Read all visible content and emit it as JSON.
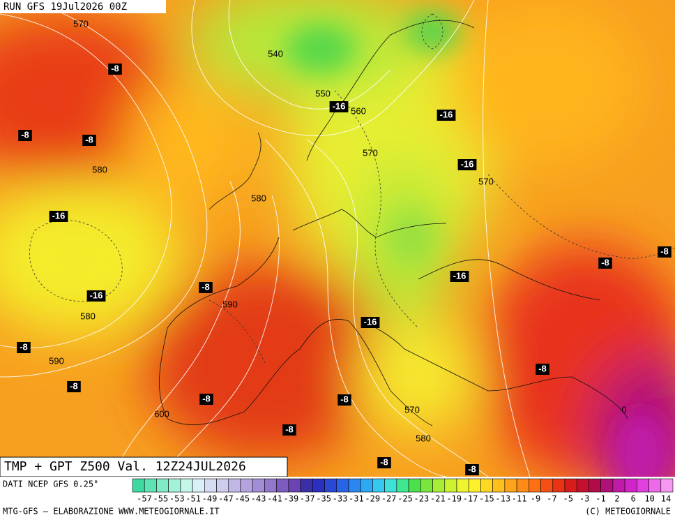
{
  "header": {
    "run": "RUN GFS 19Jul2026 00Z"
  },
  "title": "TMP + GPT Z500 Val. 12Z24JUL2026",
  "source": "DATI NCEP GFS 0.25°",
  "footer_left": "MTG-GFS – ELABORAZIONE WWW.METEOGIORNALE.IT",
  "footer_right": "(C) METEOGIORNALE",
  "height_labels": [
    "570",
    "540",
    "550",
    "560",
    "570",
    "580",
    "570",
    "580",
    "590",
    "580",
    "590",
    "600",
    "570",
    "580"
  ],
  "temp_labels": [
    "-8",
    "-8",
    "-8",
    "-16",
    "-16",
    "-16",
    "-16",
    "-8",
    "-8",
    "-16",
    "-8",
    "-16",
    "-16",
    "-8",
    "-8",
    "-8",
    "-8",
    "-8",
    "-8",
    "-8",
    "-8",
    "0"
  ],
  "colorbar": {
    "labels": [
      "-57",
      "-55",
      "-53",
      "-51",
      "-49",
      "-47",
      "-45",
      "-43",
      "-41",
      "-39",
      "-37",
      "-35",
      "-33",
      "-31",
      "-29",
      "-27",
      "-25",
      "-23",
      "-21",
      "-19",
      "-17",
      "-15",
      "-13",
      "-11",
      "-9",
      "-7",
      "-5",
      "-3",
      "-1",
      "2",
      "6",
      "10",
      "14"
    ],
    "colors": [
      "#3ed9a0",
      "#5ee3b3",
      "#80ebc6",
      "#a2f1d8",
      "#c4f6ea",
      "#d8f0f6",
      "#d6dcf4",
      "#cfcdee",
      "#c2b8e8",
      "#b3a3df",
      "#a38dd6",
      "#9277cc",
      "#7d5cbf",
      "#6a44b3",
      "#3b2fa8",
      "#2a2fc0",
      "#2a47d6",
      "#2a64e6",
      "#2b86ef",
      "#2fa8f3",
      "#36c8ef",
      "#3fe0d8",
      "#3fe890",
      "#4ce04c",
      "#7ae63c",
      "#a8ee36",
      "#ccf232",
      "#eef430",
      "#fff02c",
      "#ffd824",
      "#ffc01e",
      "#ffa41a",
      "#ff8a18",
      "#ff7016",
      "#f55014",
      "#e83414",
      "#d81c1c",
      "#c41030",
      "#b00c4a",
      "#b0107a",
      "#c01aa8",
      "#d024c8",
      "#e040dc",
      "#ec6ae8",
      "#f498f0"
    ]
  }
}
